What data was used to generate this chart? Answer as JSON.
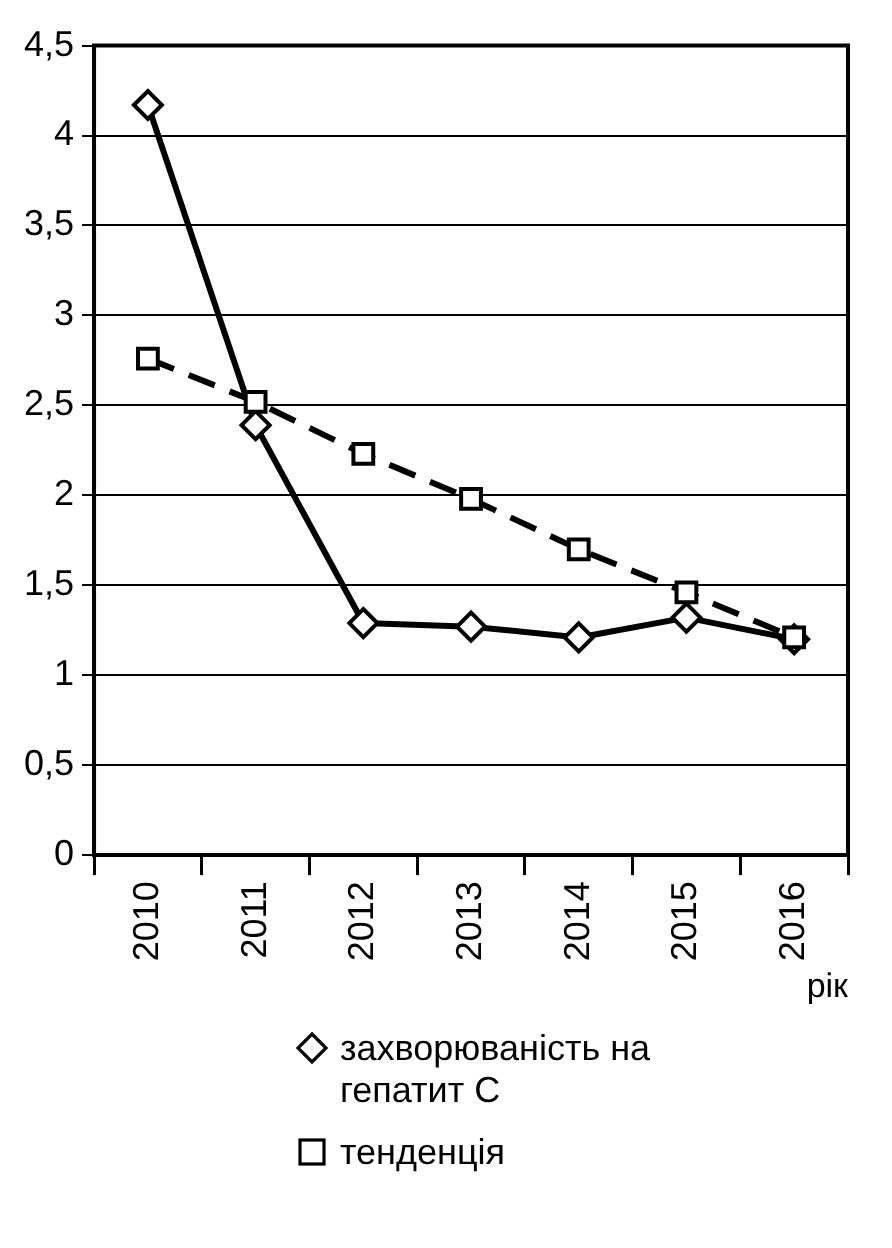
{
  "chart_data": {
    "type": "line",
    "xlabel": "рік",
    "categories": [
      "2010",
      "2011",
      "2012",
      "2013",
      "2014",
      "2015",
      "2016"
    ],
    "series": [
      {
        "name": "захворюваність на гепатит С",
        "color": "#000000",
        "marker": "diamond",
        "line_style": "solid",
        "values": [
          4.17,
          2.39,
          1.29,
          1.27,
          1.21,
          1.32,
          1.2
        ]
      },
      {
        "name": "тенденція",
        "color": "#000000",
        "marker": "square",
        "line_style": "dashed",
        "values": [
          2.76,
          2.52,
          2.23,
          1.98,
          1.7,
          1.46,
          1.21
        ]
      }
    ],
    "ylim": [
      0,
      4.5
    ],
    "yticks": [
      {
        "value": 0,
        "label": "0"
      },
      {
        "value": 0.5,
        "label": "0,5"
      },
      {
        "value": 1,
        "label": "1"
      },
      {
        "value": 1.5,
        "label": "1,5"
      },
      {
        "value": 2,
        "label": "2"
      },
      {
        "value": 2.5,
        "label": "2,5"
      },
      {
        "value": 3,
        "label": "3"
      },
      {
        "value": 3.5,
        "label": "3,5"
      },
      {
        "value": 4,
        "label": "4"
      },
      {
        "value": 4.5,
        "label": "4,5"
      }
    ],
    "grid": "y",
    "legend": "bottom"
  }
}
